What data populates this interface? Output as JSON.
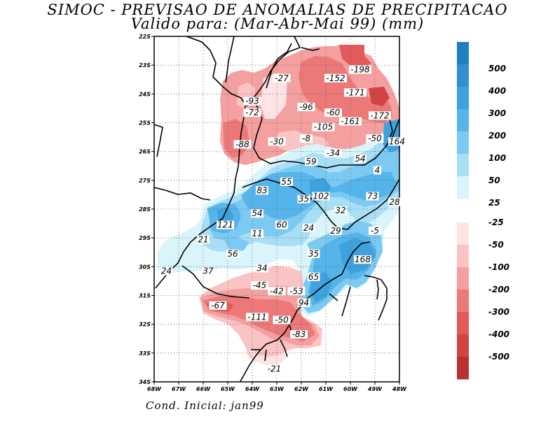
{
  "title": "SIMOC - PREVISAO DE ANOMALIAS DE PRECIPITACAO",
  "subtitle": "Valido para: (Mar-Abr-Mai 99) (mm)",
  "footer": "Cond. Inicial: jan99",
  "lat_labels": [
    "22S",
    "23S",
    "24S",
    "25S",
    "26S",
    "27S",
    "28S",
    "29S",
    "30S",
    "31S",
    "32S",
    "33S",
    "34S"
  ],
  "lon_labels": [
    "68W",
    "67W",
    "66W",
    "65W",
    "64W",
    "63W",
    "62W",
    "61W",
    "60W",
    "49W",
    "48W"
  ],
  "legend_positive": {
    "labels": [
      "500",
      "400",
      "300",
      "200",
      "100",
      "50",
      "25"
    ],
    "colors": [
      "#1e7fc0",
      "#2f8fd0",
      "#3ea2df",
      "#55b4ea",
      "#7ccaf1",
      "#a9dff6",
      "#d9f5fb"
    ]
  },
  "legend_negative": {
    "labels": [
      "-25",
      "-50",
      "-100",
      "-200",
      "-300",
      "-400",
      "-500"
    ],
    "colors": [
      "#fde3e3",
      "#fbc4c4",
      "#f5a0a0",
      "#ec7878",
      "#e25a5a",
      "#d44444",
      "#b83232"
    ]
  },
  "contour_labels": [
    {
      "text": "-27",
      "lon": -62.8,
      "lat": -23.5
    },
    {
      "text": "-152",
      "lon": -60.6,
      "lat": -23.5
    },
    {
      "text": "-198",
      "lon": -59.6,
      "lat": -23.2
    },
    {
      "text": "-171",
      "lon": -59.8,
      "lat": -24.0
    },
    {
      "text": "-93",
      "lon": -64.0,
      "lat": -24.3
    },
    {
      "text": "-72",
      "lon": -64.0,
      "lat": -24.7
    },
    {
      "text": "-96",
      "lon": -61.8,
      "lat": -24.5
    },
    {
      "text": "-60",
      "lon": -60.7,
      "lat": -24.7
    },
    {
      "text": "-161",
      "lon": -60.0,
      "lat": -25.0
    },
    {
      "text": "-172",
      "lon": -58.8,
      "lat": -24.8
    },
    {
      "text": "-105",
      "lon": -61.1,
      "lat": -25.2
    },
    {
      "text": "-8",
      "lon": -61.8,
      "lat": -25.6
    },
    {
      "text": "-50",
      "lon": -59.0,
      "lat": -25.6
    },
    {
      "text": "164",
      "lon": -58.1,
      "lat": -25.7
    },
    {
      "text": "-88",
      "lon": -64.4,
      "lat": -25.8
    },
    {
      "text": "-30",
      "lon": -63.0,
      "lat": -25.7
    },
    {
      "text": "-34",
      "lon": -60.7,
      "lat": -26.1
    },
    {
      "text": "59",
      "lon": -61.6,
      "lat": -26.4
    },
    {
      "text": "54",
      "lon": -59.6,
      "lat": -26.3
    },
    {
      "text": "4",
      "lon": -58.9,
      "lat": -26.7
    },
    {
      "text": "55",
      "lon": -62.6,
      "lat": -27.1
    },
    {
      "text": "83",
      "lon": -63.6,
      "lat": -27.4
    },
    {
      "text": "35",
      "lon": -61.9,
      "lat": -27.7
    },
    {
      "text": "102",
      "lon": -61.2,
      "lat": -27.6
    },
    {
      "text": "73",
      "lon": -59.1,
      "lat": -27.6
    },
    {
      "text": "28",
      "lon": -58.2,
      "lat": -27.8
    },
    {
      "text": "32",
      "lon": -60.4,
      "lat": -28.1
    },
    {
      "text": "54",
      "lon": -63.8,
      "lat": -28.2
    },
    {
      "text": "121",
      "lon": -65.1,
      "lat": -28.6
    },
    {
      "text": "60",
      "lon": -62.8,
      "lat": -28.6
    },
    {
      "text": "24",
      "lon": -61.7,
      "lat": -28.7
    },
    {
      "text": "29",
      "lon": -60.6,
      "lat": -28.8
    },
    {
      "text": "-5",
      "lon": -59.0,
      "lat": -28.8
    },
    {
      "text": "21",
      "lon": -66.0,
      "lat": -29.1
    },
    {
      "text": "11",
      "lon": -63.8,
      "lat": -28.9
    },
    {
      "text": "56",
      "lon": -64.8,
      "lat": -29.6
    },
    {
      "text": "35",
      "lon": -61.5,
      "lat": -29.6
    },
    {
      "text": "168",
      "lon": -59.5,
      "lat": -29.8
    },
    {
      "text": "34",
      "lon": -63.6,
      "lat": -30.1
    },
    {
      "text": "24",
      "lon": -67.5,
      "lat": -30.2
    },
    {
      "text": "37",
      "lon": -65.8,
      "lat": -30.2
    },
    {
      "text": "65",
      "lon": -61.5,
      "lat": -30.4
    },
    {
      "text": "-45",
      "lon": -63.7,
      "lat": -30.7
    },
    {
      "text": "-42",
      "lon": -63.0,
      "lat": -30.9
    },
    {
      "text": "-53",
      "lon": -62.2,
      "lat": -30.9
    },
    {
      "text": "94",
      "lon": -61.9,
      "lat": -31.3
    },
    {
      "text": "-67",
      "lon": -65.4,
      "lat": -31.4
    },
    {
      "text": "-111",
      "lon": -63.8,
      "lat": -31.8
    },
    {
      "text": "-50",
      "lon": -62.8,
      "lat": -31.9
    },
    {
      "text": "-83",
      "lon": -62.1,
      "lat": -32.4
    },
    {
      "text": "-21",
      "lon": -63.1,
      "lat": -33.6
    }
  ]
}
